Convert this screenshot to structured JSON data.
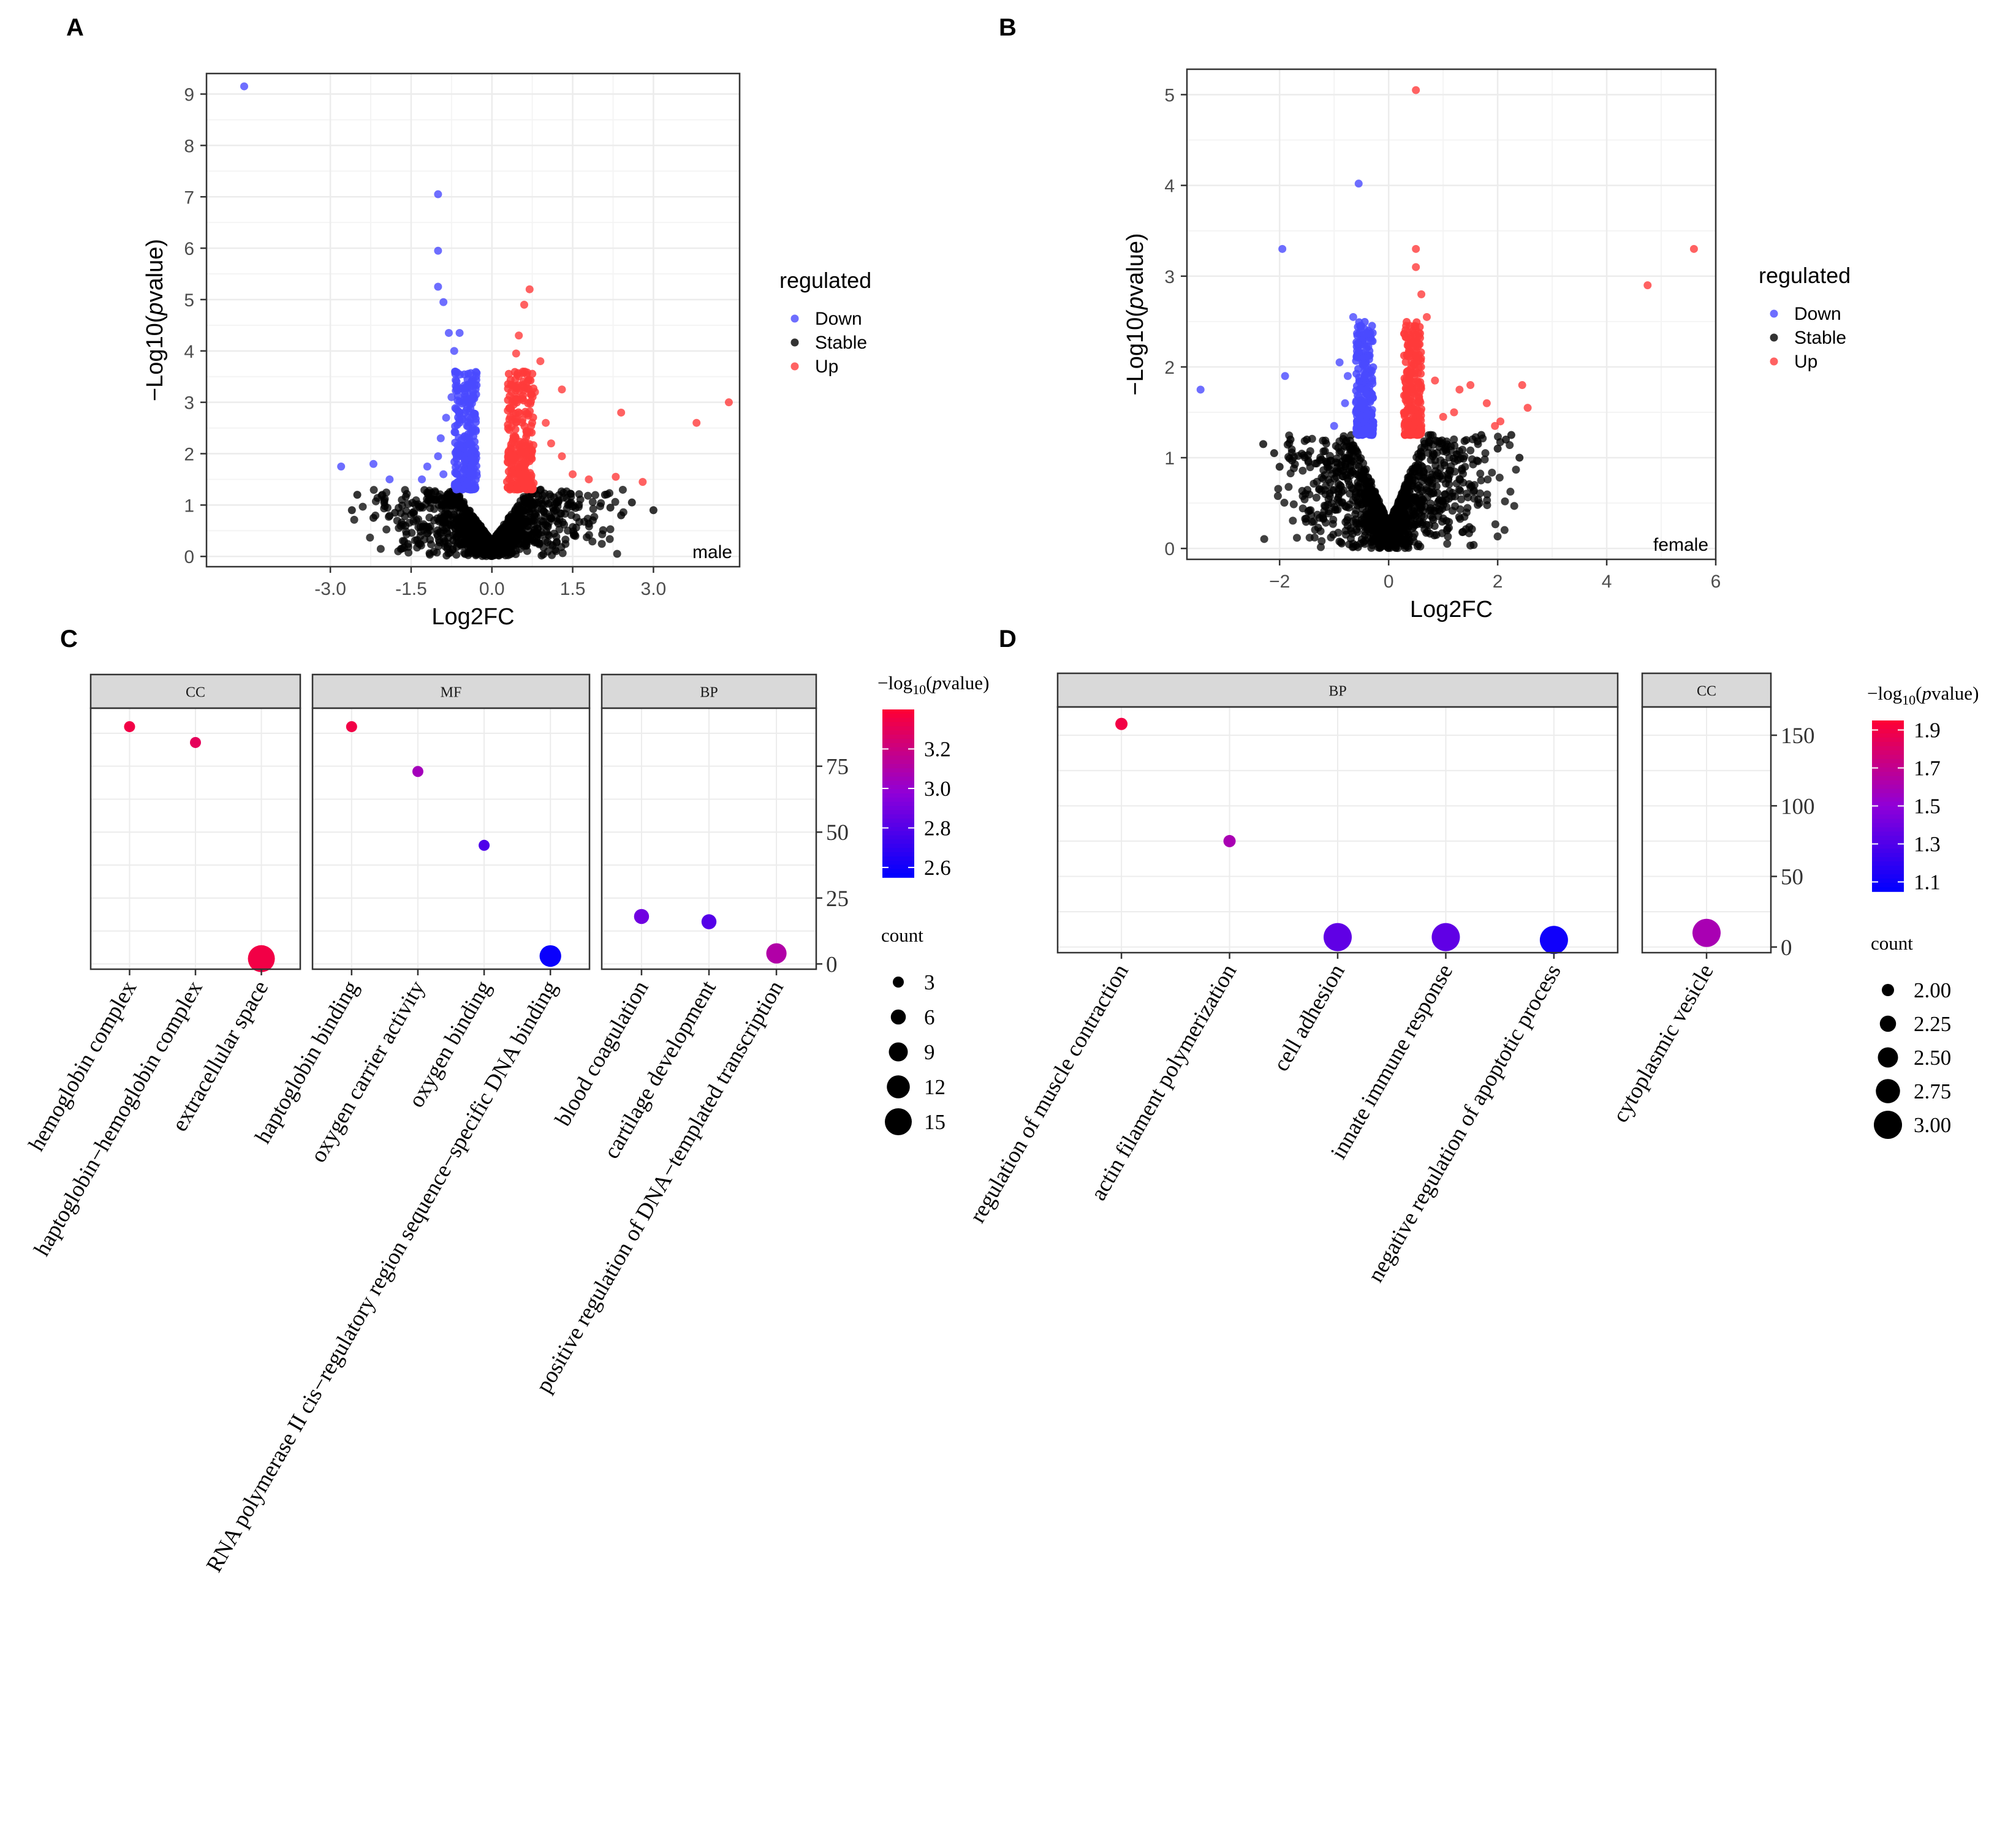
{
  "panel_labels": [
    "A",
    "B",
    "C",
    "D"
  ],
  "colors": {
    "down": "#4a4aff",
    "stable": "#000000",
    "up": "#ff3b3b",
    "strip_fill": "#d9d9d9",
    "grid": "#ececec",
    "gradient_c": [
      "#0000ff",
      "#9000d8",
      "#ff0033"
    ],
    "gradient_d": [
      "#0000ff",
      "#9000d8",
      "#ff0033"
    ]
  },
  "chart_data": [
    {
      "panel": "A",
      "type": "scatter",
      "subtype": "volcano",
      "xlabel": "Log2FC",
      "ylabel": "−Log10(pvalue)",
      "ylabel_parts": [
        "−Log10(",
        "p",
        "value)"
      ],
      "xticks": [
        -3.0,
        -1.5,
        0.0,
        1.5,
        3.0
      ],
      "xtick_labels": [
        "-3.0",
        "-1.5",
        "0.0",
        "1.5",
        "3.0"
      ],
      "yticks": [
        0,
        1,
        2,
        3,
        4,
        5,
        6,
        7,
        8,
        9
      ],
      "ytick_labels": [
        "0",
        "1",
        "2",
        "3",
        "4",
        "5",
        "6",
        "7",
        "8",
        "9"
      ],
      "xlim": [
        -5.3,
        4.6
      ],
      "ylim": [
        -0.2,
        9.4
      ],
      "annotation": "male",
      "legend_title": "regulated",
      "legend": [
        "Down",
        "Stable",
        "Up"
      ],
      "series": [
        {
          "name": "Down",
          "points": [
            [
              -4.6,
              9.15
            ],
            [
              -1.0,
              7.05
            ],
            [
              -1.0,
              5.95
            ],
            [
              -1.0,
              5.25
            ],
            [
              -0.9,
              4.95
            ],
            [
              -0.8,
              4.35
            ],
            [
              -0.6,
              4.35
            ],
            [
              -0.7,
              4.0
            ],
            [
              -2.8,
              1.75
            ],
            [
              -2.2,
              1.8
            ],
            [
              -1.9,
              1.5
            ],
            [
              -1.2,
              1.75
            ],
            [
              -1.0,
              1.95
            ],
            [
              -0.9,
              1.6
            ],
            [
              -1.3,
              1.5
            ],
            [
              -0.95,
              2.3
            ],
            [
              -0.85,
              2.7
            ],
            [
              -0.75,
              3.1
            ]
          ]
        },
        {
          "name": "Up",
          "points": [
            [
              0.7,
              5.2
            ],
            [
              0.6,
              4.9
            ],
            [
              0.5,
              4.3
            ],
            [
              0.45,
              3.95
            ],
            [
              0.9,
              3.8
            ],
            [
              1.3,
              3.25
            ],
            [
              2.4,
              2.8
            ],
            [
              3.8,
              2.6
            ],
            [
              4.4,
              3.0
            ],
            [
              1.3,
              1.95
            ],
            [
              1.5,
              1.6
            ],
            [
              2.8,
              1.45
            ],
            [
              2.3,
              1.55
            ],
            [
              1.8,
              1.5
            ],
            [
              1.0,
              2.6
            ],
            [
              1.1,
              2.2
            ],
            [
              0.8,
              3.2
            ]
          ]
        },
        {
          "name": "Stable",
          "points": [
            [
              -2.5,
              1.2
            ],
            [
              -2.0,
              1.05
            ],
            [
              -2.6,
              0.9
            ],
            [
              -1.8,
              0.85
            ],
            [
              2.1,
              1.2
            ],
            [
              2.6,
              1.05
            ],
            [
              3.0,
              0.9
            ],
            [
              2.2,
              0.95
            ],
            [
              -2.2,
              0.75
            ],
            [
              2.4,
              0.8
            ]
          ]
        }
      ]
    },
    {
      "panel": "B",
      "type": "scatter",
      "subtype": "volcano",
      "xlabel": "Log2FC",
      "ylabel": "−Log10(pvalue)",
      "ylabel_parts": [
        "−Log10(",
        "p",
        "value)"
      ],
      "xticks": [
        -2,
        0,
        2,
        4,
        6
      ],
      "xtick_labels": [
        "−2",
        "0",
        "2",
        "4",
        "6"
      ],
      "yticks": [
        0,
        1,
        2,
        3,
        4,
        5
      ],
      "ytick_labels": [
        "0",
        "1",
        "2",
        "3",
        "4",
        "5"
      ],
      "xlim": [
        -3.7,
        6.0
      ],
      "ylim": [
        -0.12,
        5.28
      ],
      "annotation": "female",
      "legend_title": "regulated",
      "legend": [
        "Down",
        "Stable",
        "Up"
      ],
      "series": [
        {
          "name": "Down",
          "points": [
            [
              -0.55,
              4.02
            ],
            [
              -1.95,
              3.3
            ],
            [
              -3.45,
              1.75
            ],
            [
              -1.9,
              1.9
            ],
            [
              -0.65,
              2.55
            ],
            [
              -0.5,
              2.45
            ],
            [
              -0.9,
              2.05
            ],
            [
              -0.75,
              1.9
            ],
            [
              -1.0,
              1.35
            ],
            [
              -0.4,
              1.7
            ],
            [
              -0.6,
              1.5
            ],
            [
              -0.3,
              1.4
            ],
            [
              -0.8,
              1.6
            ],
            [
              -0.45,
              2.1
            ]
          ]
        },
        {
          "name": "Up",
          "points": [
            [
              0.5,
              5.05
            ],
            [
              0.5,
              3.3
            ],
            [
              0.5,
              3.1
            ],
            [
              0.7,
              2.55
            ],
            [
              5.6,
              3.3
            ],
            [
              4.75,
              2.9
            ],
            [
              2.45,
              1.8
            ],
            [
              2.55,
              1.55
            ],
            [
              1.5,
              1.8
            ],
            [
              1.3,
              1.75
            ],
            [
              2.05,
              1.4
            ],
            [
              1.95,
              1.35
            ],
            [
              1.2,
              1.5
            ],
            [
              1.0,
              1.45
            ],
            [
              0.85,
              1.85
            ],
            [
              1.8,
              1.6
            ],
            [
              0.6,
              2.8
            ]
          ]
        },
        {
          "name": "Stable",
          "points": [
            [
              -2.3,
              1.15
            ],
            [
              -2.1,
              1.05
            ],
            [
              -1.8,
              1.2
            ],
            [
              -2.0,
              0.9
            ],
            [
              2.4,
              1.0
            ],
            [
              2.15,
              1.2
            ],
            [
              2.25,
              1.25
            ],
            [
              2.0,
              1.1
            ],
            [
              -1.5,
              1.2
            ],
            [
              1.7,
              1.25
            ]
          ]
        }
      ]
    },
    {
      "panel": "C",
      "type": "scatter",
      "subtype": "faceted-dotplot",
      "title": "",
      "xlabel": "",
      "ylabel": "",
      "ylim": [
        -2,
        97
      ],
      "yticks": [
        0,
        25,
        50,
        75
      ],
      "ytick_labels": [
        "0",
        "25",
        "50",
        "75"
      ],
      "facets": [
        {
          "label": "CC",
          "categories": [
            "hemoglobin complex",
            "haptoglobin−hemoglobin complex",
            "extracellular space"
          ],
          "values": [
            90,
            84,
            2
          ],
          "pvalue": [
            3.35,
            3.3,
            3.35
          ],
          "count": [
            3,
            3,
            15
          ]
        },
        {
          "label": "MF",
          "categories": [
            "haptoglobin binding",
            "oxygen carrier activity",
            "oxygen binding",
            "RNA polymerase II cis−regulatory region sequence−specific DNA binding"
          ],
          "values": [
            90,
            73,
            45,
            3
          ],
          "pvalue": [
            3.35,
            3.05,
            2.78,
            2.58
          ],
          "count": [
            3,
            3,
            3,
            11
          ]
        },
        {
          "label": "BP",
          "categories": [
            "blood coagulation",
            "cartilage development",
            "positive regulation of DNA−templated transcription"
          ],
          "values": [
            18,
            16,
            4
          ],
          "pvalue": [
            2.88,
            2.8,
            3.1
          ],
          "count": [
            6,
            6,
            10
          ]
        }
      ],
      "color_legend": {
        "title_parts": [
          "−log",
          "10",
          "(",
          "p",
          "value)"
        ],
        "ticks": [
          2.6,
          2.8,
          3.0,
          3.2
        ],
        "tick_labels": [
          "2.6",
          "2.8",
          "3.0",
          "3.2"
        ],
        "range": [
          2.55,
          3.4
        ]
      },
      "size_legend": {
        "title": "count",
        "values": [
          3,
          6,
          9,
          12,
          15
        ],
        "labels": [
          "3",
          "6",
          "9",
          "12",
          "15"
        ],
        "range": [
          3,
          15
        ]
      }
    },
    {
      "panel": "D",
      "type": "scatter",
      "subtype": "faceted-dotplot",
      "title": "",
      "xlabel": "",
      "ylabel": "",
      "ylim": [
        -4,
        170
      ],
      "yticks": [
        0,
        50,
        100,
        150
      ],
      "ytick_labels": [
        "0",
        "50",
        "100",
        "150"
      ],
      "facets": [
        {
          "label": "BP",
          "categories": [
            "regulation of muscle contraction",
            "actin filament polymerization",
            "cell adhesion",
            "innate immune response",
            "negative regulation of apoptotic process"
          ],
          "values": [
            158,
            75,
            7,
            7,
            5
          ],
          "pvalue": [
            1.9,
            1.6,
            1.35,
            1.35,
            1.1
          ],
          "count": [
            2,
            2,
            3,
            3,
            3
          ]
        },
        {
          "label": "CC",
          "categories": [
            "cytoplasmic vesicle"
          ],
          "values": [
            10
          ],
          "pvalue": [
            1.6
          ],
          "count": [
            3
          ]
        }
      ],
      "color_legend": {
        "title_parts": [
          "−log",
          "10",
          "(",
          "p",
          "value)"
        ],
        "ticks": [
          1.1,
          1.3,
          1.5,
          1.7,
          1.9
        ],
        "tick_labels": [
          "1.1",
          "1.3",
          "1.5",
          "1.7",
          "1.9"
        ],
        "range": [
          1.05,
          1.95
        ]
      },
      "size_legend": {
        "title": "count",
        "values": [
          2.0,
          2.25,
          2.5,
          2.75,
          3.0
        ],
        "labels": [
          "2.00",
          "2.25",
          "2.50",
          "2.75",
          "3.00"
        ],
        "range": [
          2,
          3
        ]
      }
    }
  ]
}
